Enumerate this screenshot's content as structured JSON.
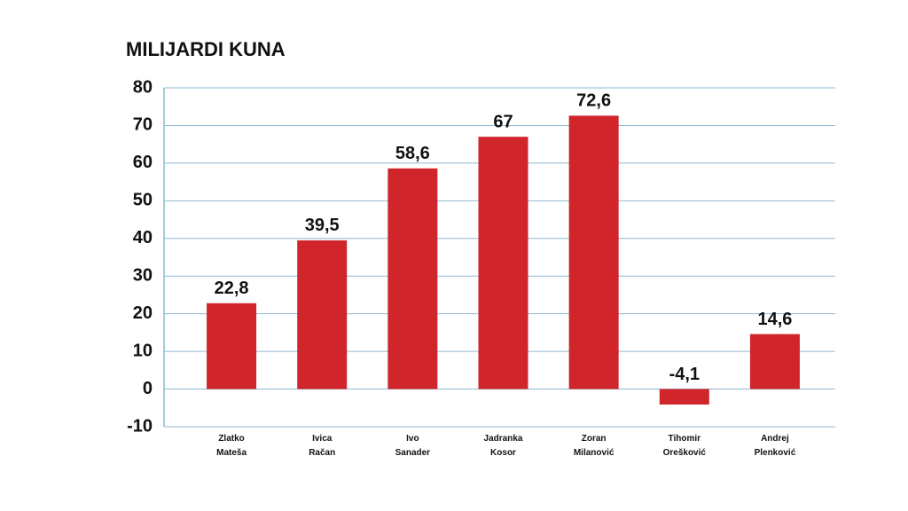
{
  "chart_data": {
    "type": "bar",
    "title": "MILIJARDI KUNA",
    "categories": [
      "Zlatko Mateša",
      "Ivica Račan",
      "Ivo Sanader",
      "Jadranka Kosor",
      "Zoran Milanović",
      "Tihomir Orešković",
      "Andrej Plenković"
    ],
    "values": [
      22.8,
      39.5,
      58.6,
      67,
      72.6,
      -4.1,
      14.6
    ],
    "value_labels": [
      "22,8",
      "39,5",
      "58,6",
      "67",
      "72,6",
      "-4,1",
      "14,6"
    ],
    "color": "#d0252b",
    "ylim": [
      -10,
      80
    ],
    "yticks": [
      -10,
      0,
      10,
      20,
      30,
      40,
      50,
      60,
      70,
      80
    ],
    "grid": true
  }
}
